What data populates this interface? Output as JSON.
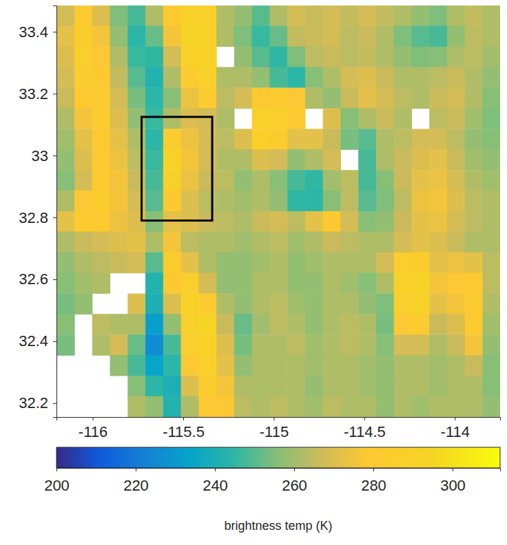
{
  "chart_data": {
    "type": "heatmap",
    "x": [
      -116.15,
      -116.052,
      -115.954,
      -115.856,
      -115.758,
      -115.66,
      -115.562,
      -115.464,
      -115.366,
      -115.268,
      -115.17,
      -115.072,
      -114.974,
      -114.876,
      -114.778,
      -114.68,
      -114.582,
      -114.484,
      -114.386,
      -114.288,
      -114.19,
      -114.092,
      -113.994,
      -113.896,
      -113.798
    ],
    "y": [
      33.452,
      33.386,
      33.319,
      33.253,
      33.186,
      33.12,
      33.053,
      32.987,
      32.92,
      32.854,
      32.787,
      32.721,
      32.654,
      32.588,
      32.521,
      32.455,
      32.388,
      32.322,
      32.255,
      32.189
    ],
    "z": [
      [
        268,
        282,
        270,
        255,
        248,
        262,
        280,
        290,
        288,
        262,
        258,
        250,
        262,
        268,
        266,
        268,
        265,
        268,
        265,
        262,
        258,
        255,
        262,
        265,
        262
      ],
      [
        272,
        285,
        276,
        258,
        244,
        252,
        276,
        292,
        290,
        262,
        255,
        246,
        252,
        265,
        266,
        268,
        264,
        266,
        262,
        255,
        250,
        248,
        258,
        264,
        262
      ],
      [
        270,
        286,
        278,
        262,
        246,
        245,
        268,
        288,
        290,
        null,
        258,
        250,
        245,
        255,
        264,
        266,
        264,
        265,
        262,
        258,
        255,
        256,
        262,
        264,
        260
      ],
      [
        268,
        284,
        280,
        265,
        250,
        242,
        262,
        282,
        288,
        262,
        262,
        258,
        248,
        244,
        256,
        262,
        268,
        270,
        266,
        262,
        262,
        264,
        266,
        262,
        258
      ],
      [
        266,
        280,
        282,
        268,
        254,
        244,
        256,
        274,
        282,
        264,
        268,
        280,
        282,
        278,
        262,
        258,
        266,
        272,
        268,
        264,
        262,
        266,
        268,
        262,
        256
      ],
      [
        262,
        276,
        282,
        270,
        258,
        246,
        262,
        270,
        268,
        262,
        null,
        288,
        286,
        280,
        null,
        270,
        256,
        262,
        266,
        262,
        null,
        264,
        266,
        260,
        255
      ],
      [
        260,
        272,
        280,
        272,
        262,
        244,
        284,
        274,
        268,
        264,
        270,
        288,
        284,
        272,
        272,
        266,
        254,
        250,
        262,
        264,
        268,
        268,
        264,
        258,
        256
      ],
      [
        258,
        270,
        280,
        274,
        264,
        246,
        290,
        276,
        268,
        262,
        262,
        270,
        268,
        258,
        262,
        268,
        null,
        248,
        262,
        266,
        270,
        272,
        266,
        260,
        258
      ],
      [
        256,
        268,
        282,
        276,
        266,
        248,
        288,
        274,
        266,
        264,
        258,
        262,
        256,
        248,
        245,
        260,
        264,
        248,
        256,
        266,
        272,
        274,
        268,
        262,
        260
      ],
      [
        262,
        278,
        284,
        276,
        268,
        250,
        280,
        270,
        264,
        262,
        260,
        262,
        258,
        245,
        244,
        256,
        264,
        250,
        255,
        264,
        274,
        276,
        270,
        264,
        262
      ],
      [
        272,
        282,
        280,
        274,
        270,
        256,
        272,
        270,
        266,
        264,
        262,
        266,
        268,
        264,
        272,
        280,
        268,
        256,
        258,
        266,
        272,
        274,
        268,
        264,
        262
      ],
      [
        262,
        266,
        268,
        270,
        272,
        262,
        276,
        264,
        262,
        262,
        260,
        262,
        264,
        260,
        262,
        266,
        264,
        262,
        262,
        268,
        272,
        270,
        266,
        262,
        262
      ],
      [
        258,
        262,
        264,
        266,
        268,
        250,
        284,
        272,
        262,
        258,
        258,
        260,
        262,
        258,
        260,
        262,
        262,
        262,
        268,
        286,
        284,
        272,
        274,
        272,
        264
      ],
      [
        256,
        260,
        262,
        null,
        null,
        242,
        280,
        286,
        268,
        258,
        258,
        262,
        262,
        258,
        258,
        262,
        260,
        256,
        262,
        290,
        292,
        276,
        278,
        280,
        264
      ],
      [
        254,
        258,
        null,
        null,
        270,
        240,
        270,
        290,
        282,
        262,
        258,
        262,
        264,
        260,
        258,
        262,
        262,
        258,
        255,
        286,
        290,
        272,
        276,
        282,
        262
      ],
      [
        256,
        null,
        264,
        262,
        262,
        232,
        258,
        288,
        294,
        266,
        252,
        260,
        264,
        262,
        258,
        262,
        264,
        262,
        254,
        278,
        282,
        266,
        270,
        282,
        260
      ],
      [
        254,
        null,
        262,
        268,
        252,
        226,
        248,
        286,
        290,
        270,
        254,
        262,
        262,
        264,
        260,
        262,
        264,
        262,
        256,
        268,
        268,
        262,
        266,
        276,
        258
      ],
      [
        null,
        null,
        null,
        258,
        248,
        234,
        244,
        278,
        288,
        272,
        258,
        262,
        262,
        262,
        260,
        262,
        262,
        260,
        258,
        262,
        262,
        260,
        262,
        266,
        256
      ],
      [
        null,
        null,
        null,
        null,
        256,
        244,
        240,
        270,
        284,
        276,
        262,
        262,
        262,
        262,
        258,
        262,
        262,
        260,
        258,
        262,
        262,
        260,
        262,
        262,
        256
      ],
      [
        null,
        null,
        null,
        null,
        262,
        258,
        242,
        262,
        278,
        278,
        264,
        262,
        264,
        262,
        260,
        264,
        262,
        262,
        258,
        262,
        260,
        262,
        262,
        262,
        258
      ]
    ],
    "xlim": [
      -116.2,
      -113.75
    ],
    "ylim": [
      32.155,
      33.485
    ],
    "xticks": [
      -116,
      -115.5,
      -115,
      -114.5,
      -114
    ],
    "yticks": [
      32.2,
      32.4,
      32.6,
      32.8,
      33,
      33.2,
      33.4
    ],
    "colorbar": {
      "range": [
        200,
        312
      ],
      "ticks": [
        200,
        220,
        240,
        260,
        280,
        300
      ],
      "label": "brightness temp (K)"
    },
    "region": {
      "x": [
        -115.73,
        -115.34
      ],
      "y": [
        32.79,
        33.125
      ]
    }
  }
}
